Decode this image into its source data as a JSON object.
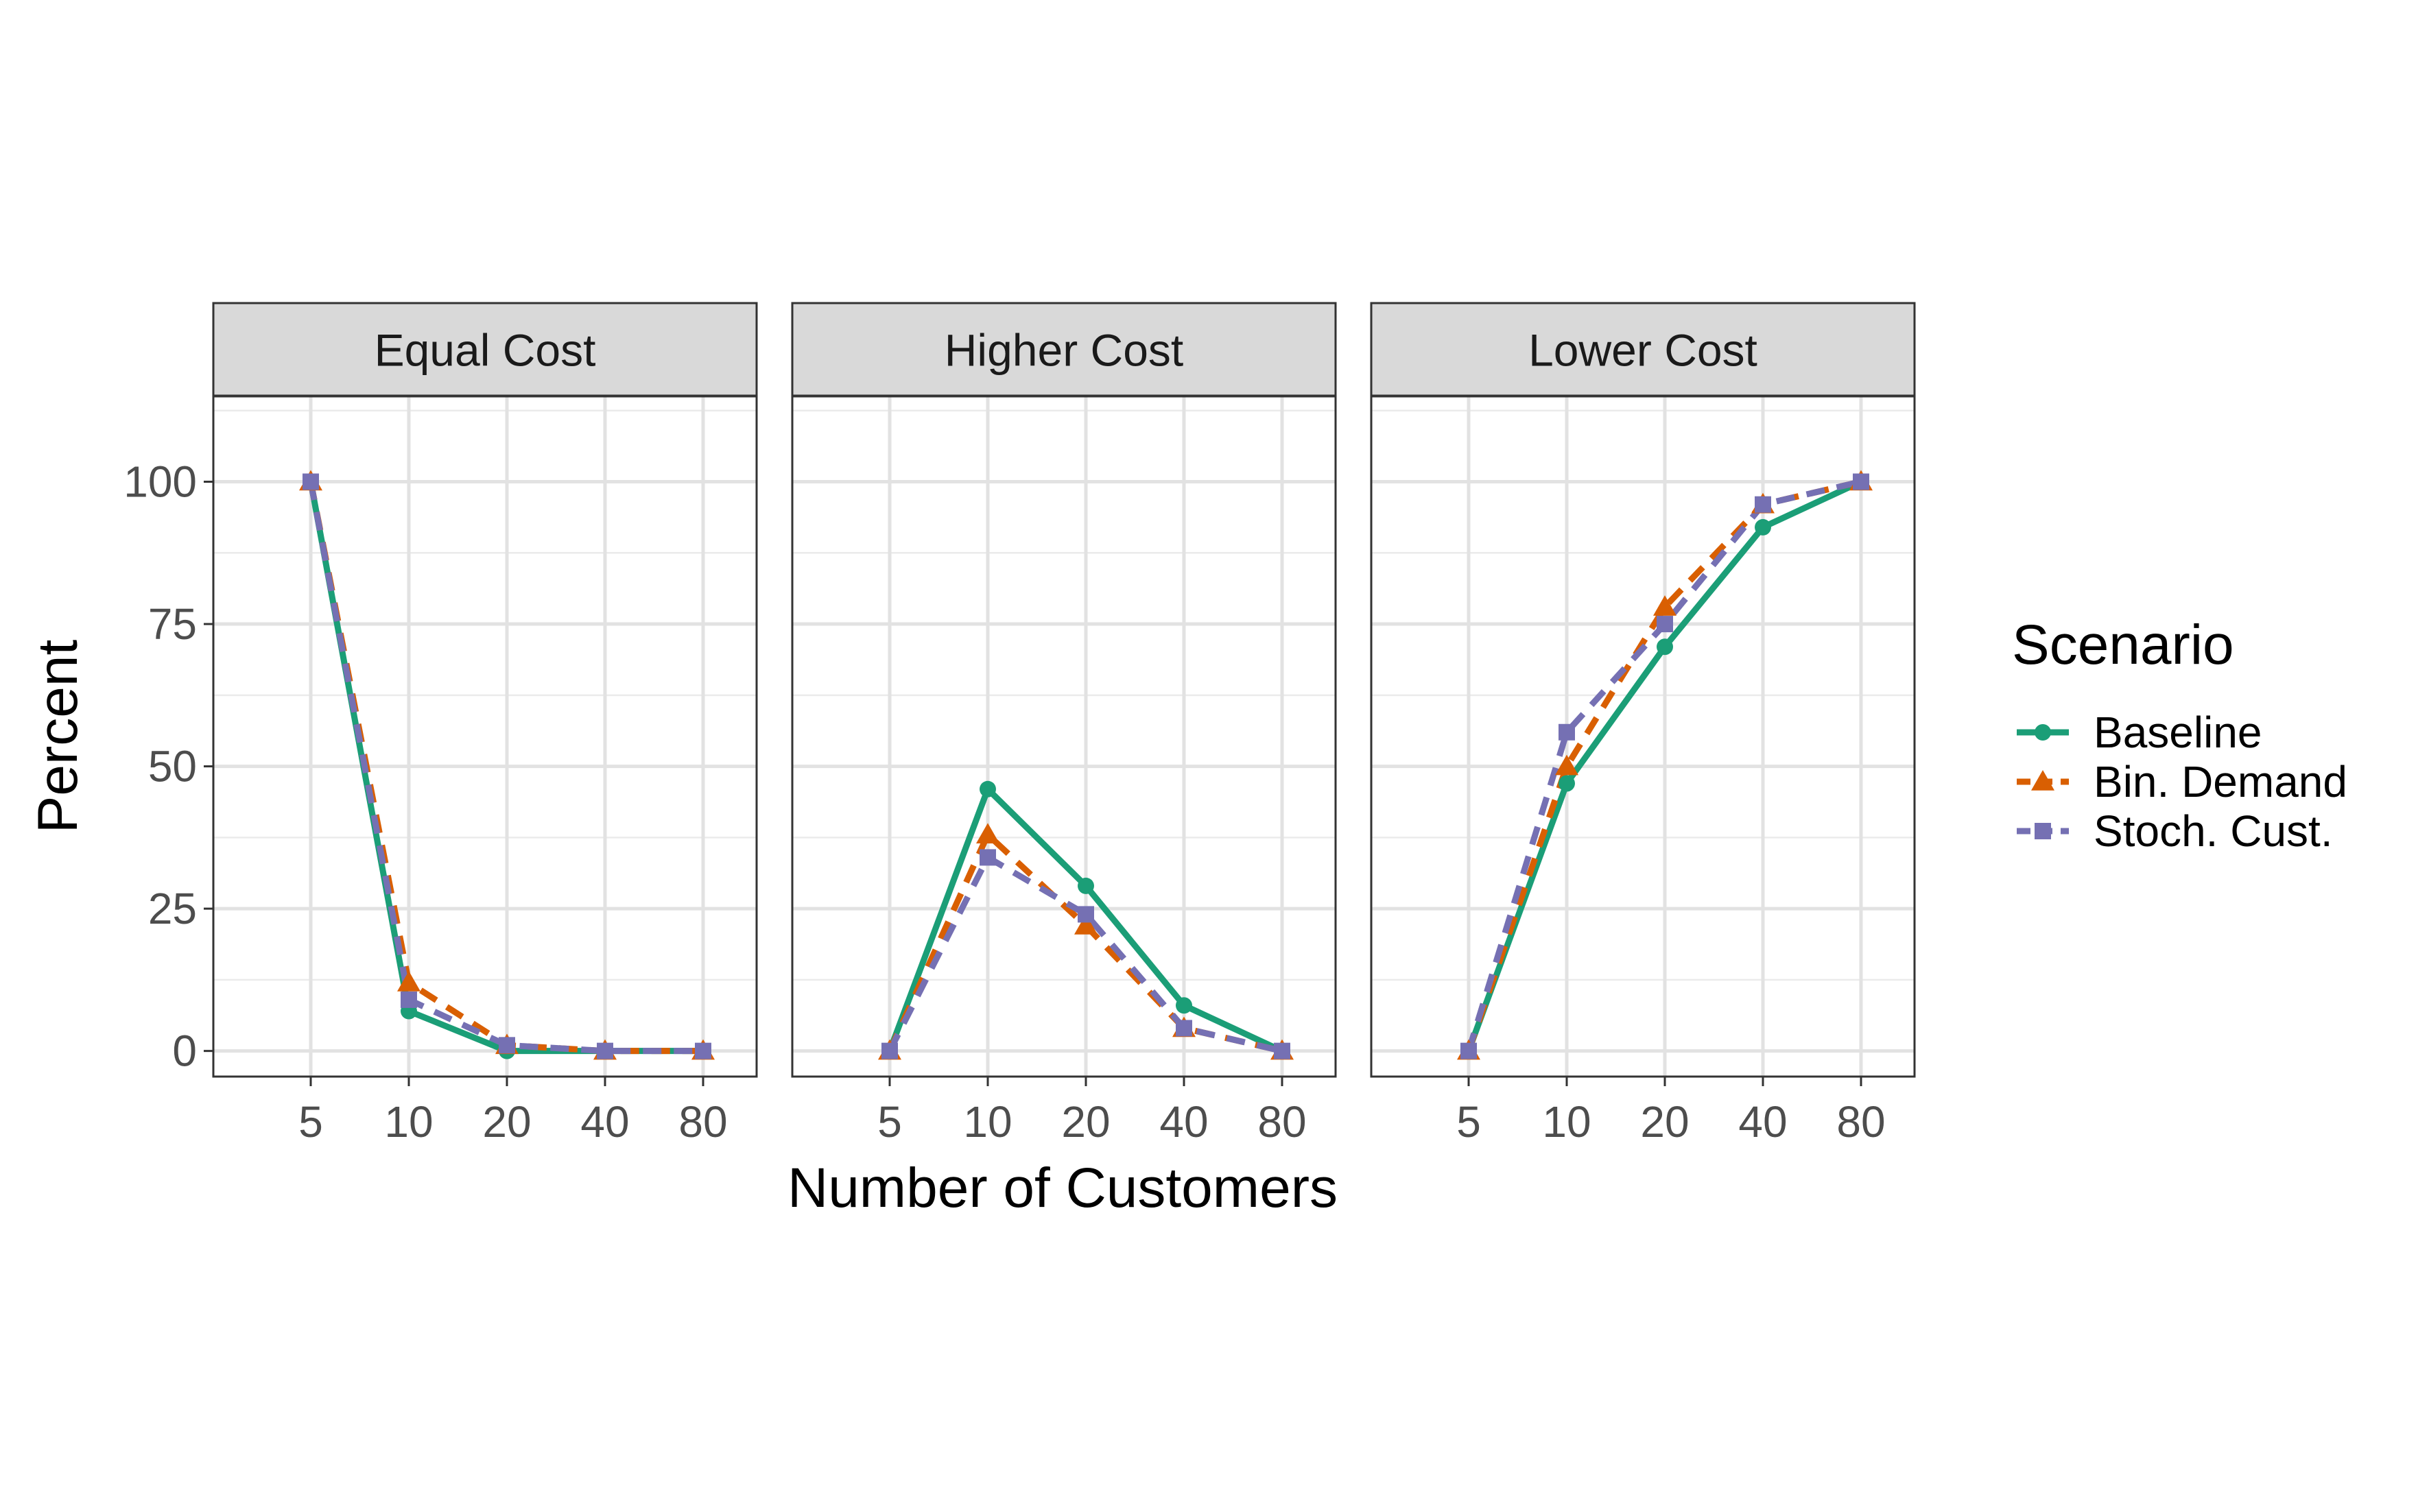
{
  "chart_data": {
    "type": "line",
    "facet_by": "cost scenario",
    "categories": [
      "5",
      "10",
      "20",
      "40",
      "80"
    ],
    "xlabel": "Number of Customers",
    "ylabel": "Percent",
    "ylim": [
      -4.5,
      115
    ],
    "yticks": [
      0,
      25,
      50,
      75,
      100
    ],
    "grid": true,
    "legend": {
      "title": "Scenario",
      "placement": "right",
      "entries": [
        "Baseline",
        "Bin. Demand",
        "Stoch. Cust."
      ]
    },
    "series_styles": [
      {
        "name": "Baseline",
        "color": "#1b9e77",
        "line": "solid",
        "marker": "circle"
      },
      {
        "name": "Bin. Demand",
        "color": "#d95f02",
        "line": "dashed",
        "marker": "triangle"
      },
      {
        "name": "Stoch. Cust.",
        "color": "#7570b3",
        "line": "dashed",
        "marker": "square"
      }
    ],
    "panels": [
      {
        "title": "Equal Cost",
        "series": [
          {
            "name": "Baseline",
            "values": [
              100,
              7,
              0,
              0,
              0
            ]
          },
          {
            "name": "Bin. Demand",
            "values": [
              100,
              12,
              1,
              0,
              0
            ]
          },
          {
            "name": "Stoch. Cust.",
            "values": [
              100,
              9,
              1,
              0,
              0
            ]
          }
        ]
      },
      {
        "title": "Higher Cost",
        "series": [
          {
            "name": "Baseline",
            "values": [
              0,
              46,
              29,
              8,
              0
            ]
          },
          {
            "name": "Bin. Demand",
            "values": [
              0,
              38,
              22,
              4,
              0
            ]
          },
          {
            "name": "Stoch. Cust.",
            "values": [
              0,
              34,
              24,
              4,
              0
            ]
          }
        ]
      },
      {
        "title": "Lower Cost",
        "series": [
          {
            "name": "Baseline",
            "values": [
              0,
              47,
              71,
              92,
              100
            ]
          },
          {
            "name": "Bin. Demand",
            "values": [
              0,
              50,
              78,
              96,
              100
            ]
          },
          {
            "name": "Stoch. Cust.",
            "values": [
              0,
              56,
              75,
              96,
              100
            ]
          }
        ]
      }
    ]
  }
}
